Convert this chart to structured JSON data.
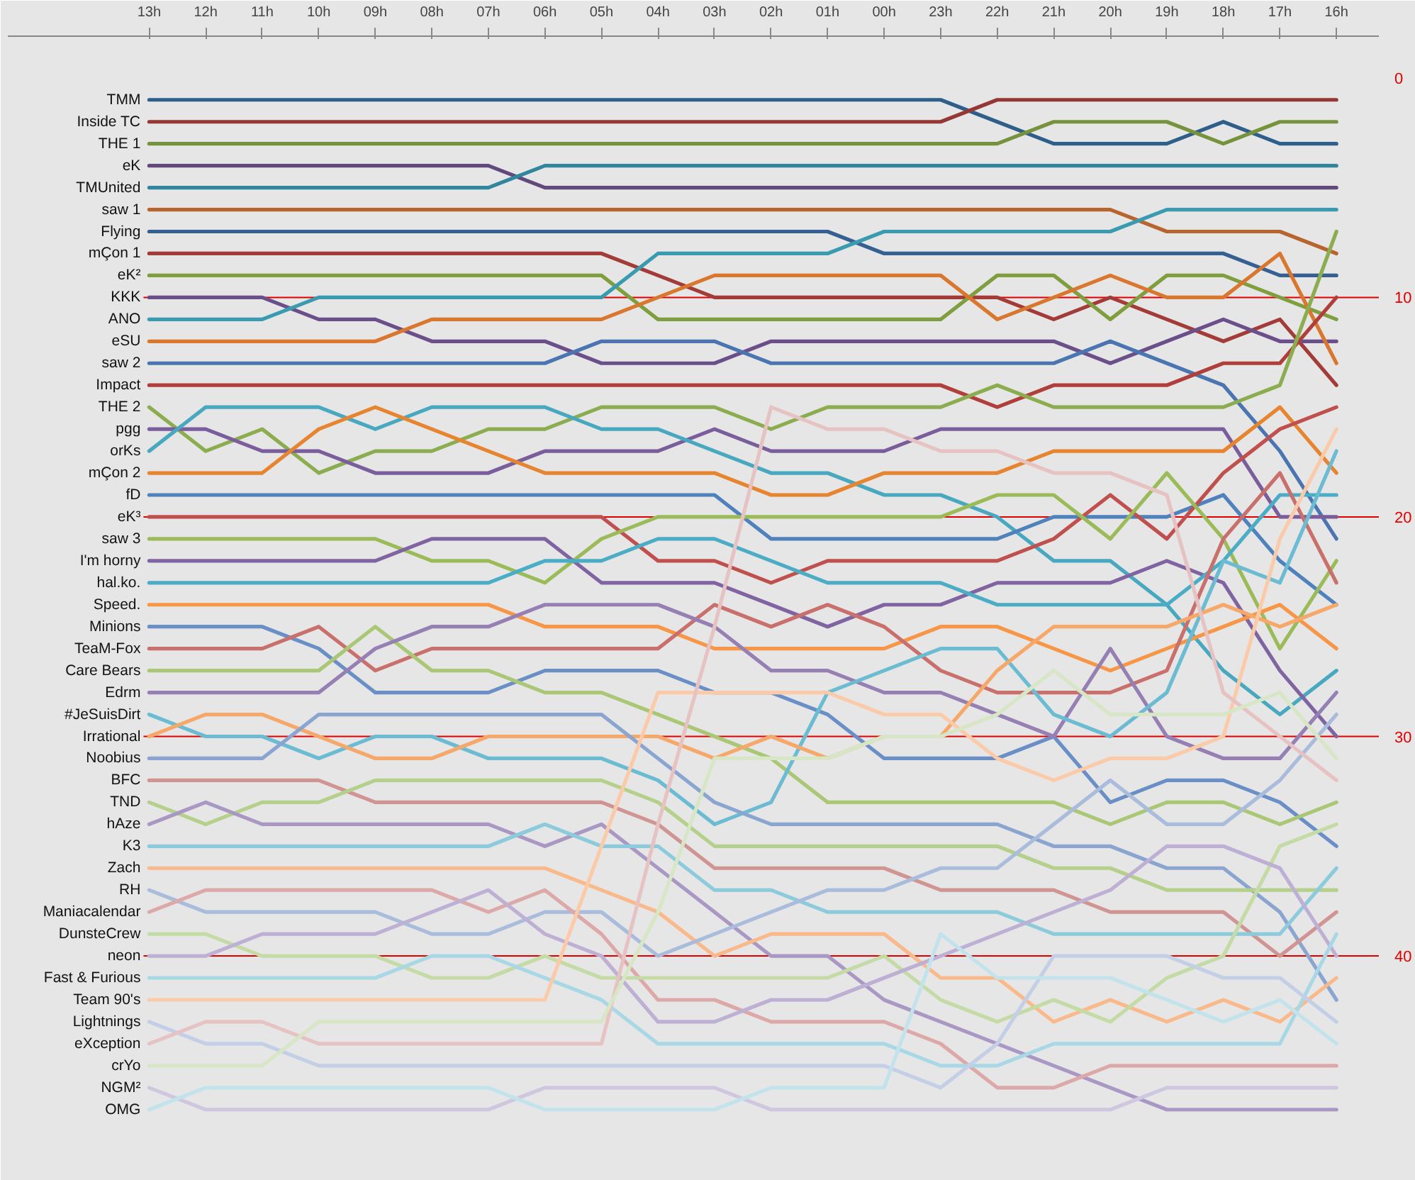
{
  "chart_data": {
    "type": "line",
    "categories": [
      "13h",
      "12h",
      "11h",
      "10h",
      "09h",
      "08h",
      "07h",
      "06h",
      "05h",
      "04h",
      "03h",
      "02h",
      "01h",
      "00h",
      "23h",
      "22h",
      "21h",
      "20h",
      "19h",
      "18h",
      "17h",
      "16h"
    ],
    "ylim": [
      48.3,
      -1.9
    ],
    "yticks": [
      0,
      10,
      20,
      30,
      40
    ],
    "ref_lines": [
      {
        "axis": "y",
        "value": 10,
        "color": "#e00000"
      },
      {
        "axis": "y",
        "value": 20,
        "color": "#e00000"
      },
      {
        "axis": "y",
        "value": 30,
        "color": "#e00000"
      },
      {
        "axis": "y",
        "value": 40,
        "color": "#e00000"
      }
    ],
    "series": [
      {
        "name": "TMM",
        "color": "#2e5e8a",
        "values": [
          1,
          1,
          1,
          1,
          1,
          1,
          1,
          1,
          1,
          1,
          1,
          1,
          1,
          1,
          1,
          2,
          3,
          3,
          3,
          2,
          3,
          3
        ]
      },
      {
        "name": "Inside TC",
        "color": "#953735",
        "values": [
          2,
          2,
          2,
          2,
          2,
          2,
          2,
          2,
          2,
          2,
          2,
          2,
          2,
          2,
          2,
          1,
          1,
          1,
          1,
          1,
          1,
          1
        ]
      },
      {
        "name": "THE 1",
        "color": "#76923c",
        "values": [
          3,
          3,
          3,
          3,
          3,
          3,
          3,
          3,
          3,
          3,
          3,
          3,
          3,
          3,
          3,
          3,
          2,
          2,
          2,
          3,
          2,
          2
        ]
      },
      {
        "name": "eK",
        "color": "#604a7b",
        "values": [
          4,
          4,
          4,
          4,
          4,
          4,
          4,
          5,
          5,
          5,
          5,
          5,
          5,
          5,
          5,
          5,
          5,
          5,
          5,
          5,
          5,
          5
        ]
      },
      {
        "name": "TMUnited",
        "color": "#31859c",
        "values": [
          5,
          5,
          5,
          5,
          5,
          5,
          5,
          4,
          4,
          4,
          4,
          4,
          4,
          4,
          4,
          4,
          4,
          4,
          4,
          4,
          4,
          4
        ]
      },
      {
        "name": "saw 1",
        "color": "#b8642e",
        "values": [
          6,
          6,
          6,
          6,
          6,
          6,
          6,
          6,
          6,
          6,
          6,
          6,
          6,
          6,
          6,
          6,
          6,
          6,
          7,
          7,
          7,
          8
        ]
      },
      {
        "name": "Flying",
        "color": "#366092",
        "values": [
          7,
          7,
          7,
          7,
          7,
          7,
          7,
          7,
          7,
          7,
          7,
          7,
          7,
          8,
          8,
          8,
          8,
          8,
          8,
          8,
          9,
          9
        ]
      },
      {
        "name": "mÇon 1",
        "color": "#a33b38",
        "values": [
          8,
          8,
          8,
          8,
          8,
          8,
          8,
          8,
          8,
          9,
          10,
          10,
          10,
          10,
          10,
          10,
          11,
          10,
          11,
          12,
          11,
          14
        ]
      },
      {
        "name": "eK²",
        "color": "#7f9f3f",
        "values": [
          9,
          9,
          9,
          9,
          9,
          9,
          9,
          9,
          9,
          11,
          11,
          11,
          11,
          11,
          11,
          9,
          9,
          11,
          9,
          9,
          10,
          11
        ]
      },
      {
        "name": "KKK",
        "color": "#6a4f8a",
        "values": [
          10,
          10,
          10,
          11,
          11,
          12,
          12,
          12,
          13,
          13,
          13,
          12,
          12,
          12,
          12,
          12,
          12,
          13,
          12,
          11,
          12,
          12
        ]
      },
      {
        "name": "ANO",
        "color": "#3a9bb0",
        "values": [
          11,
          11,
          11,
          10,
          10,
          10,
          10,
          10,
          10,
          8,
          8,
          8,
          8,
          7,
          7,
          7,
          7,
          7,
          6,
          6,
          6,
          6
        ]
      },
      {
        "name": "eSU",
        "color": "#d9772e",
        "values": [
          12,
          12,
          12,
          12,
          12,
          11,
          11,
          11,
          11,
          10,
          9,
          9,
          9,
          9,
          9,
          11,
          10,
          9,
          10,
          10,
          8,
          13
        ]
      },
      {
        "name": "saw 2",
        "color": "#4a75b0",
        "values": [
          13,
          13,
          13,
          13,
          13,
          13,
          13,
          13,
          12,
          12,
          12,
          13,
          13,
          13,
          13,
          13,
          13,
          12,
          13,
          14,
          17,
          21
        ]
      },
      {
        "name": "Impact",
        "color": "#b03e3b",
        "values": [
          14,
          14,
          14,
          14,
          14,
          14,
          14,
          14,
          14,
          14,
          14,
          14,
          14,
          14,
          14,
          15,
          14,
          14,
          14,
          13,
          13,
          10
        ]
      },
      {
        "name": "THE 2",
        "color": "#8cad4f",
        "values": [
          15,
          17,
          16,
          18,
          17,
          17,
          16,
          16,
          15,
          15,
          15,
          16,
          15,
          15,
          15,
          14,
          15,
          15,
          15,
          15,
          14,
          7
        ]
      },
      {
        "name": "pgg",
        "color": "#7a5e9c",
        "values": [
          16,
          16,
          17,
          17,
          18,
          18,
          18,
          17,
          17,
          17,
          16,
          17,
          17,
          17,
          16,
          16,
          16,
          16,
          16,
          16,
          20,
          20
        ]
      },
      {
        "name": "orKs",
        "color": "#47a8bf",
        "values": [
          17,
          15,
          15,
          15,
          16,
          15,
          15,
          15,
          16,
          16,
          17,
          18,
          18,
          19,
          19,
          20,
          22,
          22,
          24,
          27,
          29,
          27
        ]
      },
      {
        "name": "mÇon 2",
        "color": "#e6842f",
        "values": [
          18,
          18,
          18,
          16,
          15,
          16,
          17,
          18,
          18,
          18,
          18,
          19,
          19,
          18,
          18,
          18,
          17,
          17,
          17,
          17,
          15,
          18
        ]
      },
      {
        "name": "fD",
        "color": "#4f81bd",
        "values": [
          19,
          19,
          19,
          19,
          19,
          19,
          19,
          19,
          19,
          19,
          19,
          21,
          21,
          21,
          21,
          21,
          20,
          20,
          20,
          19,
          22,
          24
        ]
      },
      {
        "name": "eK³",
        "color": "#c0504d",
        "values": [
          20,
          20,
          20,
          20,
          20,
          20,
          20,
          20,
          20,
          22,
          22,
          23,
          22,
          22,
          22,
          22,
          21,
          19,
          21,
          18,
          16,
          15
        ]
      },
      {
        "name": "saw 3",
        "color": "#9bbb59",
        "values": [
          21,
          21,
          21,
          21,
          21,
          22,
          22,
          23,
          21,
          20,
          20,
          20,
          20,
          20,
          20,
          19,
          19,
          21,
          18,
          21,
          26,
          22
        ]
      },
      {
        "name": "I'm horny",
        "color": "#8064a2",
        "values": [
          22,
          22,
          22,
          22,
          22,
          21,
          21,
          21,
          23,
          23,
          23,
          24,
          25,
          24,
          24,
          23,
          23,
          23,
          22,
          23,
          27,
          30
        ]
      },
      {
        "name": "hal.ko.",
        "color": "#4bacc6",
        "values": [
          23,
          23,
          23,
          23,
          23,
          23,
          23,
          22,
          22,
          21,
          21,
          22,
          23,
          23,
          23,
          24,
          24,
          24,
          24,
          22,
          19,
          19
        ]
      },
      {
        "name": "Speed.",
        "color": "#f79646",
        "values": [
          24,
          24,
          24,
          24,
          24,
          24,
          24,
          25,
          25,
          25,
          26,
          26,
          26,
          26,
          25,
          25,
          26,
          27,
          26,
          25,
          24,
          26
        ]
      },
      {
        "name": "Minions",
        "color": "#6a8fc7",
        "values": [
          25,
          25,
          25,
          26,
          28,
          28,
          28,
          27,
          27,
          27,
          28,
          28,
          29,
          31,
          31,
          31,
          30,
          33,
          32,
          32,
          33,
          35
        ]
      },
      {
        "name": "TeaM-Fox",
        "color": "#c9706d",
        "values": [
          26,
          26,
          26,
          25,
          27,
          26,
          26,
          26,
          26,
          26,
          24,
          25,
          24,
          25,
          27,
          28,
          28,
          28,
          27,
          21,
          18,
          23
        ]
      },
      {
        "name": "Care Bears",
        "color": "#a9c774",
        "values": [
          27,
          27,
          27,
          27,
          25,
          27,
          27,
          28,
          28,
          29,
          30,
          31,
          33,
          33,
          33,
          33,
          33,
          34,
          33,
          33,
          34,
          33
        ]
      },
      {
        "name": "Edrm",
        "color": "#957fb3",
        "values": [
          28,
          28,
          28,
          28,
          26,
          25,
          25,
          24,
          24,
          24,
          25,
          27,
          27,
          28,
          28,
          29,
          30,
          26,
          30,
          31,
          31,
          28
        ]
      },
      {
        "name": "#JeSuisDirt",
        "color": "#6bbcd2",
        "values": [
          29,
          30,
          30,
          31,
          30,
          30,
          31,
          31,
          31,
          32,
          34,
          33,
          28,
          27,
          26,
          26,
          29,
          30,
          28,
          22,
          23,
          17
        ]
      },
      {
        "name": "Irrational",
        "color": "#f5a86a",
        "values": [
          30,
          29,
          29,
          30,
          31,
          31,
          30,
          30,
          30,
          30,
          31,
          30,
          31,
          30,
          30,
          27,
          25,
          25,
          25,
          24,
          25,
          24
        ]
      },
      {
        "name": "Noobius",
        "color": "#8aa5d0",
        "values": [
          31,
          31,
          31,
          29,
          29,
          29,
          29,
          29,
          29,
          31,
          33,
          34,
          34,
          34,
          34,
          34,
          35,
          35,
          36,
          36,
          38,
          42
        ]
      },
      {
        "name": "BFC",
        "color": "#d09492",
        "values": [
          32,
          32,
          32,
          32,
          33,
          33,
          33,
          33,
          33,
          34,
          36,
          36,
          36,
          36,
          37,
          37,
          37,
          38,
          38,
          38,
          40,
          38
        ]
      },
      {
        "name": "TND",
        "color": "#b4d08a",
        "values": [
          33,
          34,
          33,
          33,
          32,
          32,
          32,
          32,
          32,
          33,
          35,
          35,
          35,
          35,
          35,
          35,
          36,
          36,
          37,
          37,
          37,
          37
        ]
      },
      {
        "name": "hAze",
        "color": "#a997c4",
        "values": [
          34,
          33,
          34,
          34,
          34,
          34,
          34,
          35,
          34,
          36,
          38,
          40,
          40,
          42,
          43,
          44,
          45,
          46,
          47,
          47,
          47,
          47
        ]
      },
      {
        "name": "K3",
        "color": "#8ccbdc",
        "values": [
          35,
          35,
          35,
          35,
          35,
          35,
          35,
          34,
          35,
          35,
          37,
          37,
          38,
          38,
          38,
          38,
          39,
          39,
          39,
          39,
          39,
          36
        ]
      },
      {
        "name": "Zach",
        "color": "#f9b98a",
        "values": [
          36,
          36,
          36,
          36,
          36,
          36,
          36,
          36,
          37,
          38,
          40,
          39,
          39,
          39,
          41,
          41,
          43,
          42,
          43,
          42,
          43,
          41
        ]
      },
      {
        "name": "RH",
        "color": "#a9bcdc",
        "values": [
          37,
          38,
          38,
          38,
          38,
          39,
          39,
          38,
          38,
          40,
          39,
          38,
          37,
          37,
          36,
          36,
          34,
          32,
          34,
          34,
          32,
          29
        ]
      },
      {
        "name": "Maniacalendar",
        "color": "#dca9a8",
        "values": [
          38,
          37,
          37,
          37,
          37,
          37,
          38,
          37,
          39,
          42,
          42,
          43,
          43,
          43,
          44,
          46,
          46,
          45,
          45,
          45,
          45,
          45
        ]
      },
      {
        "name": "DunsteCrew",
        "color": "#c5dba6",
        "values": [
          39,
          39,
          40,
          40,
          40,
          41,
          41,
          40,
          41,
          41,
          41,
          41,
          41,
          40,
          42,
          43,
          42,
          43,
          41,
          40,
          35,
          34
        ]
      },
      {
        "name": "neon",
        "color": "#bdb0d4",
        "values": [
          40,
          40,
          39,
          39,
          39,
          38,
          37,
          39,
          40,
          43,
          43,
          42,
          42,
          41,
          40,
          39,
          38,
          37,
          35,
          35,
          36,
          40
        ]
      },
      {
        "name": "Fast & Furious",
        "color": "#a8d8e5",
        "values": [
          41,
          41,
          41,
          41,
          41,
          40,
          40,
          41,
          42,
          44,
          44,
          44,
          44,
          44,
          45,
          45,
          44,
          44,
          44,
          44,
          44,
          39
        ]
      },
      {
        "name": "Team 90's",
        "color": "#fbcaa8",
        "values": [
          42,
          42,
          42,
          42,
          42,
          42,
          42,
          42,
          35,
          28,
          28,
          28,
          28,
          29,
          29,
          31,
          32,
          31,
          31,
          30,
          21,
          16
        ]
      },
      {
        "name": "Lightnings",
        "color": "#c3cfe6",
        "values": [
          43,
          44,
          44,
          45,
          45,
          45,
          45,
          45,
          45,
          45,
          45,
          45,
          45,
          45,
          46,
          44,
          40,
          40,
          40,
          41,
          41,
          43
        ]
      },
      {
        "name": "eXception",
        "color": "#e6c3c2",
        "values": [
          44,
          43,
          43,
          44,
          44,
          44,
          44,
          44,
          44,
          34,
          25,
          15,
          16,
          16,
          17,
          17,
          18,
          18,
          19,
          28,
          30,
          32
        ]
      },
      {
        "name": "crYo",
        "color": "#d7e6c5",
        "values": [
          45,
          45,
          45,
          43,
          43,
          43,
          43,
          43,
          43,
          38,
          31,
          31,
          31,
          30,
          30,
          29,
          27,
          29,
          29,
          29,
          28,
          31
        ]
      },
      {
        "name": "NGM²",
        "color": "#cfc6e0",
        "values": [
          46,
          47,
          47,
          47,
          47,
          47,
          47,
          46,
          46,
          46,
          46,
          47,
          47,
          47,
          47,
          47,
          47,
          47,
          46,
          46,
          46,
          46
        ]
      },
      {
        "name": "OMG",
        "color": "#c2e3ec",
        "values": [
          47,
          46,
          46,
          46,
          46,
          46,
          46,
          47,
          47,
          47,
          47,
          46,
          46,
          46,
          39,
          41,
          41,
          41,
          42,
          43,
          42,
          44
        ]
      }
    ]
  }
}
